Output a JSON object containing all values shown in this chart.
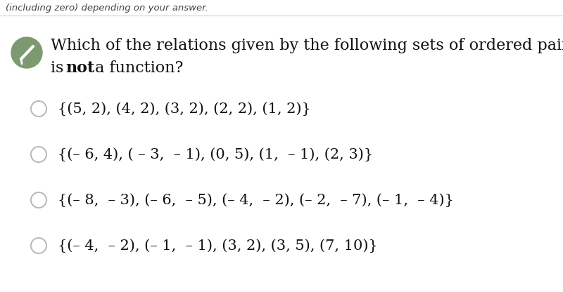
{
  "background_color": "#ffffff",
  "header_text": "(including zero) depending on your answer.",
  "header_font_size": 9.5,
  "header_color": "#444444",
  "question_line1": "Which of the relations given by the following sets of ordered pairs",
  "question_line2_normal1": "is ",
  "question_line2_bold": "not",
  "question_line2_normal2": " a function?",
  "question_font_size": 16,
  "options": [
    "{(5, 2), (4, 2), (3, 2), (2, 2), (1, 2)}",
    "{(– 6, 4), ( – 3,  – 1), (0, 5), (1,  – 1), (2, 3)}",
    "{(– 8,  – 3), (– 6,  – 5), (– 4,  – 2), (– 2,  – 7), (– 1,  – 4)}",
    "{(– 4,  – 2), (– 1,  – 1), (3, 2), (3, 5), (7, 10)}"
  ],
  "option_font_size": 15,
  "icon_color": "#7d9970",
  "circle_edge_color": "#bbbbbb",
  "divider_color": "#dddddd"
}
